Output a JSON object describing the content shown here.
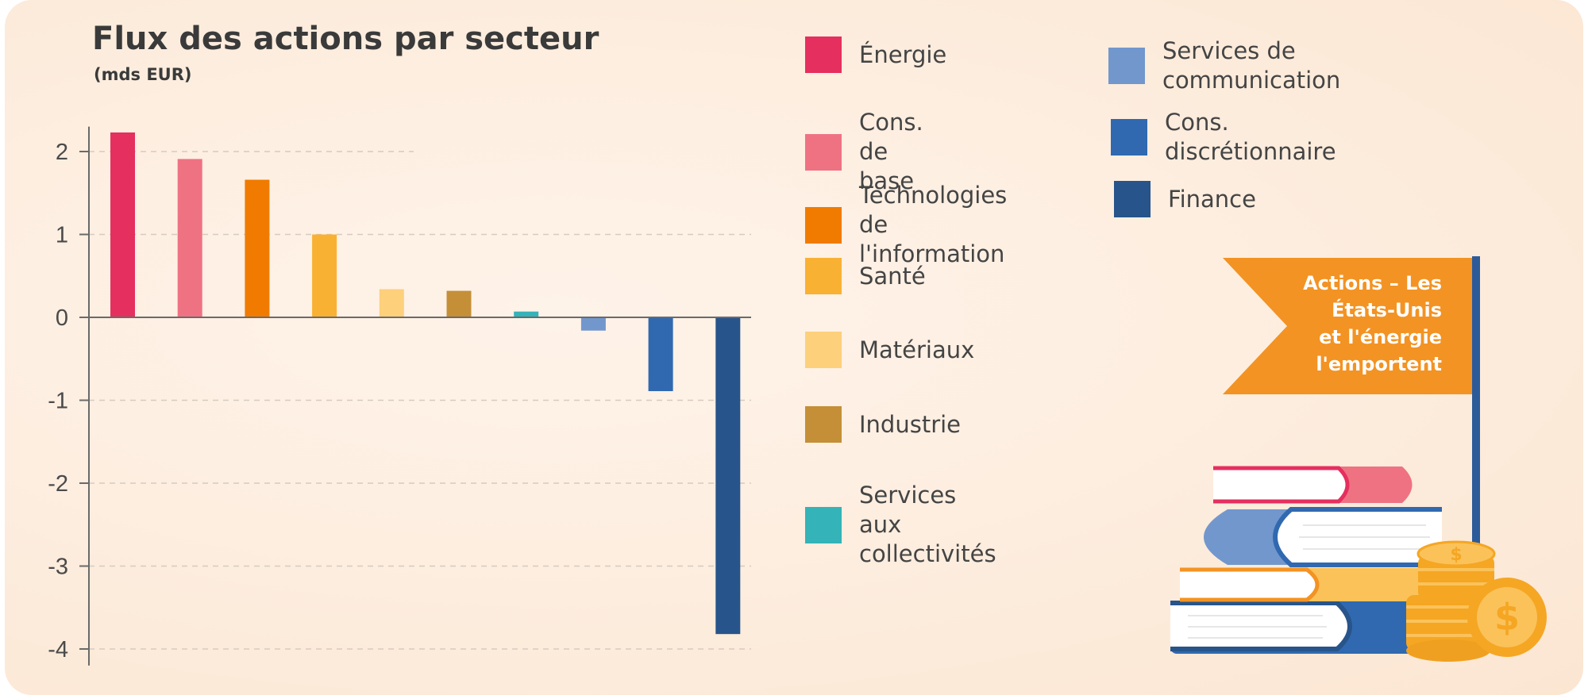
{
  "header": {
    "title": "Flux des actions par secteur",
    "subtitle": "(mds EUR)"
  },
  "chart_data": {
    "type": "bar",
    "title": "Flux des actions par secteur",
    "subtitle": "(mds EUR)",
    "ylim": [
      -4.2,
      2.3
    ],
    "yticks": [
      2,
      1,
      0,
      -1,
      -2,
      -3,
      -4
    ],
    "grid": "horizontal dashed",
    "legend_position": "right",
    "categories": [
      "Énergie",
      "Cons. de base",
      "Technologies de l'information",
      "Santé",
      "Matériaux",
      "Industrie",
      "Services aux collectivités",
      "Services de communication",
      "Cons. discrétionnaire",
      "Finance"
    ],
    "values": [
      2.23,
      1.91,
      1.66,
      1.0,
      0.34,
      0.32,
      0.07,
      -0.16,
      -0.89,
      -3.82
    ],
    "colors": [
      "#e52f5f",
      "#ef7283",
      "#f07b00",
      "#f9b134",
      "#fdd07c",
      "#c48f37",
      "#34b3b8",
      "#7297cd",
      "#3069b0",
      "#27548a"
    ]
  },
  "legend": {
    "items": [
      {
        "label": "Énergie",
        "color": "#e52f5f"
      },
      {
        "label": "Cons. de base",
        "color": "#ef7283"
      },
      {
        "label": "Technologies\nde l'information",
        "color": "#f07b00"
      },
      {
        "label": "Santé",
        "color": "#f9b134"
      },
      {
        "label": "Matériaux",
        "color": "#fdd07c"
      },
      {
        "label": "Industrie",
        "color": "#c48f37"
      },
      {
        "label": "Services aux\ncollectivités",
        "color": "#34b3b8"
      },
      {
        "label": "Services de communication",
        "color": "#7297cd"
      },
      {
        "label": "Cons. discrétionnaire",
        "color": "#3069b0"
      },
      {
        "label": "Finance",
        "color": "#27548a"
      }
    ]
  },
  "banner": {
    "text": "Actions – Les\nÉtats-Unis\net l'énergie\nl'emportent",
    "flag_color": "#f39323",
    "pole_color": "#2d5b9a"
  },
  "illustration": {
    "books_icon": "stacked-books-icon",
    "coins_icon": "gold-coins-dollar-icon"
  }
}
